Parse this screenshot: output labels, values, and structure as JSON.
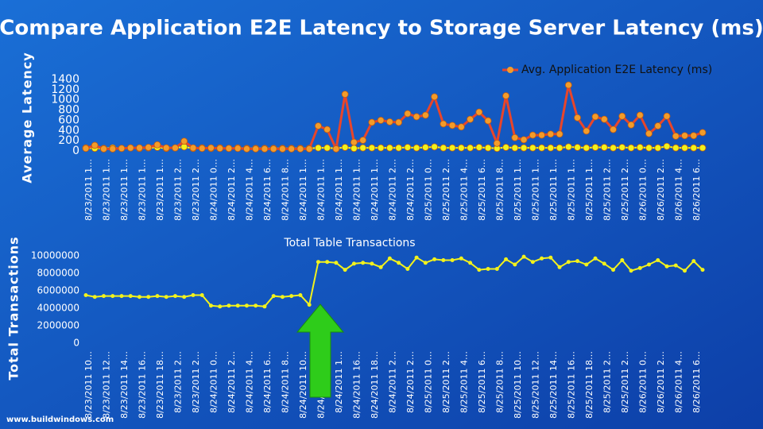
{
  "header": {
    "title": "Compare Application E2E Latency to Storage Server Latency (ms)"
  },
  "footer": {
    "text": "www.buildwindows.com"
  },
  "chart_data": [
    {
      "type": "line",
      "y_label": "Average Latency",
      "legend": "top-right",
      "categories": [
        "8/23/2011 1…",
        null,
        "8/23/2011 1…",
        null,
        "8/23/2011 1…",
        null,
        "8/23/2011 1…",
        null,
        "8/23/2011 1…",
        null,
        "8/23/2011 2…",
        null,
        "8/23/2011 2…",
        null,
        "8/24/2011 0…",
        null,
        "8/24/2011 2…",
        null,
        "8/24/2011 4…",
        null,
        "8/24/2011 6…",
        null,
        "8/24/2011 8…",
        null,
        "8/24/2011 1…",
        null,
        "8/24/2011 1…",
        null,
        "8/24/2011 1…",
        null,
        "8/24/2011 1…",
        null,
        "8/24/2011 1…",
        null,
        "8/24/2011 2…",
        null,
        "8/24/2011 2…",
        null,
        "8/25/2011 0…",
        null,
        "8/25/2011 2…",
        null,
        "8/25/2011 4…",
        null,
        "8/25/2011 6…",
        null,
        "8/25/2011 8…",
        null,
        "8/25/2011 1…",
        null,
        "8/25/2011 1…",
        null,
        "8/25/2011 1…",
        null,
        "8/25/2011 1…",
        null,
        "8/25/2011 1…",
        null,
        "8/25/2011 2…",
        null,
        "8/25/2011 2…",
        null,
        "8/26/2011 0…",
        null,
        "8/26/2011 2…",
        null,
        "8/26/2011 4…",
        null,
        "8/26/2011 6…",
        null
      ],
      "series": [
        {
          "name": "Avg. Application E2E Latency (ms)",
          "color": "#e8452a",
          "marker_color": "#f39c2a",
          "values": [
            50,
            110,
            40,
            40,
            50,
            60,
            60,
            70,
            120,
            60,
            60,
            190,
            60,
            50,
            60,
            50,
            50,
            50,
            40,
            40,
            40,
            40,
            40,
            40,
            40,
            40,
            490,
            420,
            40,
            1110,
            170,
            210,
            560,
            600,
            570,
            560,
            730,
            670,
            700,
            1060,
            530,
            500,
            470,
            620,
            760,
            590,
            150,
            1080,
            260,
            220,
            310,
            310,
            330,
            330,
            1290,
            650,
            390,
            670,
            620,
            420,
            680,
            510,
            700,
            340,
            490,
            680,
            290,
            300,
            300,
            360
          ]
        },
        {
          "color": "#f2f21c",
          "marker_color": "#f2f21c",
          "values": [
            60,
            50,
            50,
            60,
            50,
            60,
            50,
            60,
            70,
            50,
            60,
            80,
            50,
            60,
            50,
            60,
            50,
            60,
            50,
            50,
            50,
            50,
            50,
            50,
            50,
            50,
            60,
            60,
            50,
            70,
            50,
            60,
            60,
            60,
            60,
            60,
            70,
            60,
            70,
            80,
            60,
            60,
            60,
            60,
            70,
            60,
            50,
            70,
            60,
            60,
            60,
            60,
            60,
            60,
            80,
            70,
            60,
            70,
            70,
            60,
            70,
            60,
            70,
            60,
            60,
            90,
            60,
            60,
            60,
            60
          ]
        }
      ],
      "ylim": [
        0,
        1400
      ],
      "yticks": [
        0,
        200,
        400,
        600,
        800,
        1000,
        1200,
        1400
      ]
    },
    {
      "type": "line",
      "title": "Total Table Transactions",
      "y_label": "Total Transactions",
      "categories": [
        "8/23/2011 10…",
        null,
        "8/23/2011 12…",
        null,
        "8/23/2011 14…",
        null,
        "8/23/2011 16…",
        null,
        "8/23/2011 18…",
        null,
        "8/23/2011 2…",
        null,
        "8/23/2011 2…",
        null,
        "8/24/2011 0…",
        null,
        "8/24/2011 2…",
        null,
        "8/24/2011 4…",
        null,
        "8/24/2011 6…",
        null,
        "8/24/2011 8…",
        null,
        "8/24/2011 10…",
        null,
        "8/24/2011 12…",
        null,
        "8/24/2011 1…",
        null,
        "8/24/2011 16…",
        null,
        "8/24/2011 18…",
        null,
        "8/24/2011 2…",
        null,
        "8/24/2011 2…",
        null,
        "8/25/2011 0…",
        null,
        "8/25/2011 2…",
        null,
        "8/25/2011 4…",
        null,
        "8/25/2011 6…",
        null,
        "8/25/2011 8…",
        null,
        "8/25/2011 10…",
        null,
        "8/25/2011 12…",
        null,
        "8/25/2011 14…",
        null,
        "8/25/2011 16…",
        null,
        "8/25/2011 18…",
        null,
        "8/25/2011 2…",
        null,
        "8/25/2011 2…",
        null,
        "8/26/2011 0…",
        null,
        "8/26/2011 2…",
        null,
        "8/26/2011 4…",
        null,
        "8/26/2011 6…",
        null
      ],
      "series": [
        {
          "color": "#f2f21c",
          "values": [
            5500000,
            5300000,
            5400000,
            5400000,
            5400000,
            5400000,
            5300000,
            5300000,
            5400000,
            5300000,
            5400000,
            5300000,
            5500000,
            5500000,
            4300000,
            4200000,
            4300000,
            4300000,
            4300000,
            4300000,
            4200000,
            5400000,
            5300000,
            5400000,
            5500000,
            4400000,
            9300000,
            9300000,
            9200000,
            8400000,
            9100000,
            9200000,
            9100000,
            8700000,
            9700000,
            9200000,
            8500000,
            9800000,
            9200000,
            9600000,
            9500000,
            9500000,
            9700000,
            9200000,
            8400000,
            8500000,
            8500000,
            9600000,
            9000000,
            9900000,
            9300000,
            9700000,
            9800000,
            8700000,
            9300000,
            9400000,
            9000000,
            9700000,
            9100000,
            8400000,
            9500000,
            8300000,
            8600000,
            9000000,
            9500000,
            8800000,
            8900000,
            8300000,
            9400000,
            8400000
          ]
        }
      ],
      "ylim": [
        0,
        10000000
      ],
      "yticks": [
        0,
        2000000,
        4000000,
        6000000,
        8000000,
        10000000
      ]
    }
  ]
}
